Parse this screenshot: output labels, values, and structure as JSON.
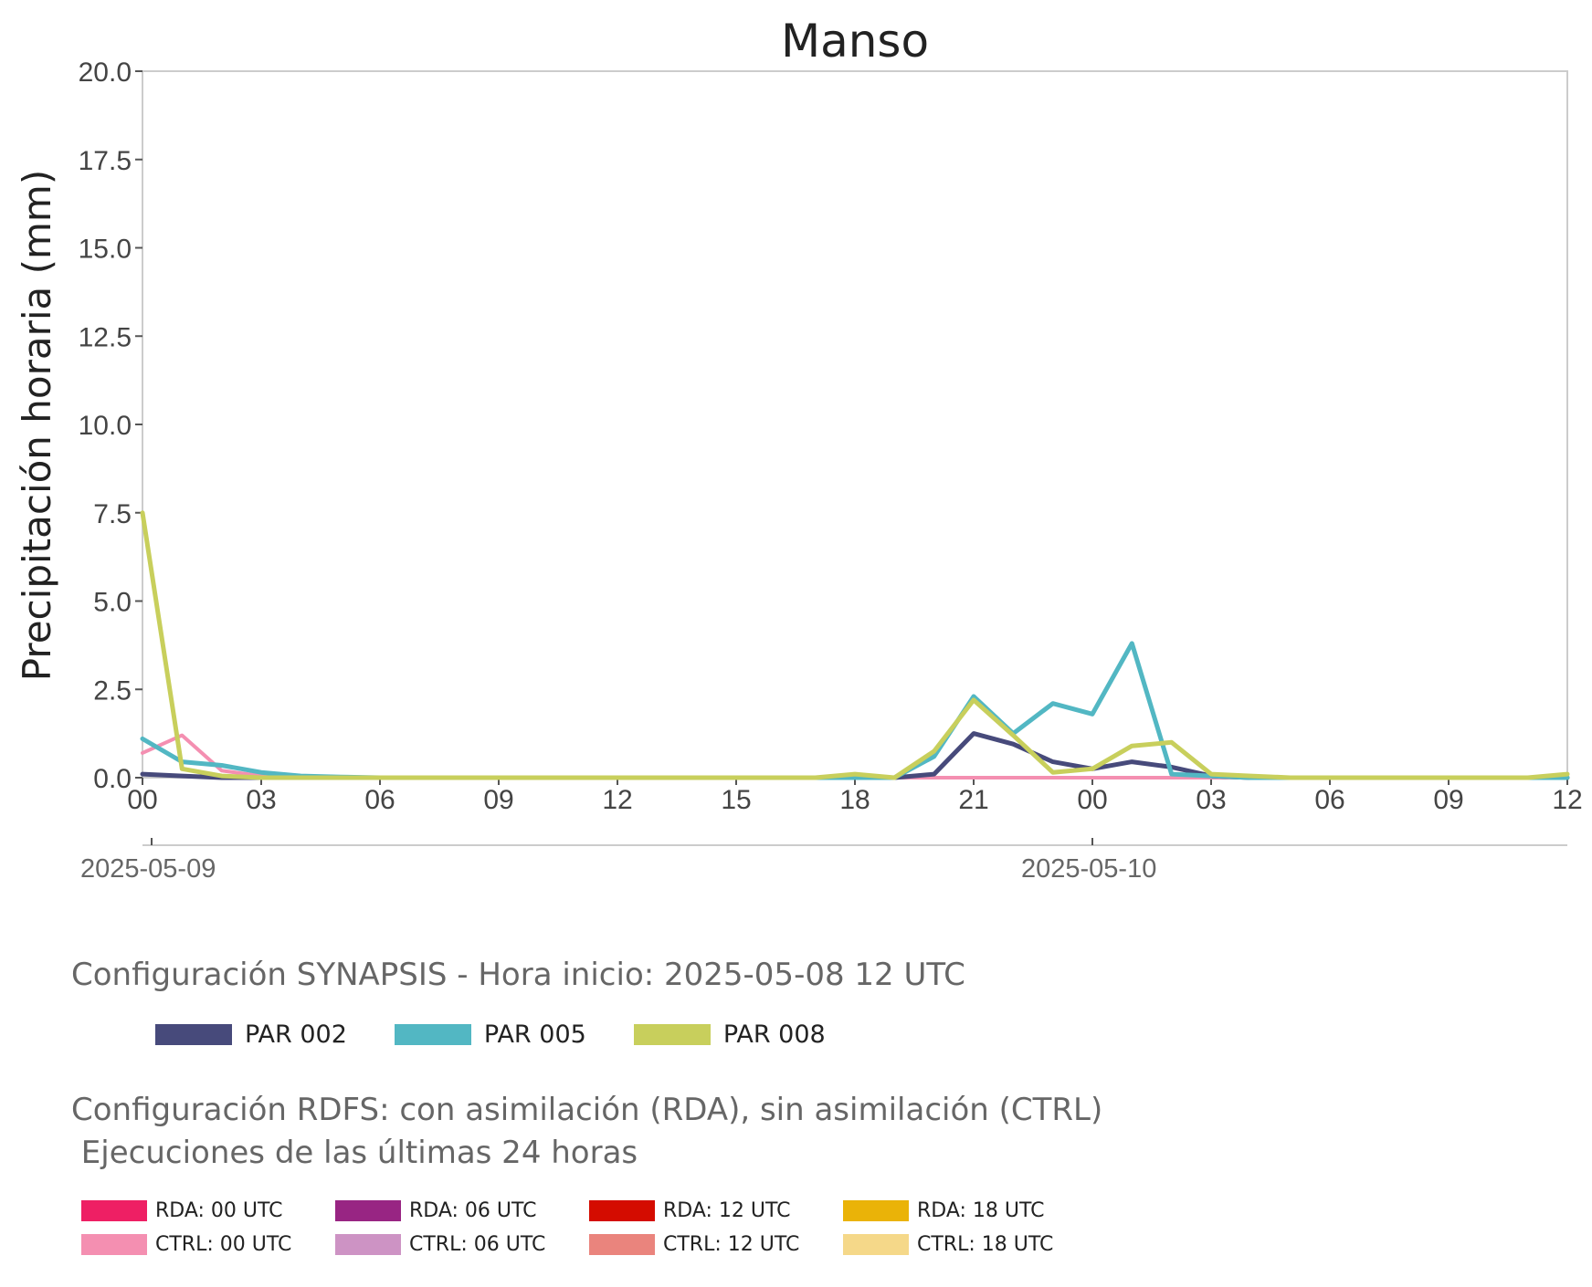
{
  "chart_data": {
    "type": "line",
    "title": "Manso",
    "ylabel": "Precipitación horaria (mm)",
    "xlabel": "",
    "ylim": [
      0,
      20
    ],
    "xlim": [
      "2025-05-09 00:00",
      "2025-05-10 12:00"
    ],
    "y_ticks": [
      "0.0",
      "2.5",
      "5.0",
      "7.5",
      "10.0",
      "12.5",
      "15.0",
      "17.5",
      "20.0"
    ],
    "x_ticks": [
      "00",
      "03",
      "06",
      "09",
      "12",
      "15",
      "18",
      "21",
      "00",
      "03",
      "06",
      "09",
      "12"
    ],
    "date_labels": [
      {
        "time": "2025-05-09 00:00",
        "label": "2025-05-09"
      },
      {
        "time": "2025-05-10 00:00",
        "label": "2025-05-10"
      }
    ],
    "grid": false,
    "series": [
      {
        "name": "PAR 002",
        "color": "#474a7b",
        "points": [
          [
            "2025-05-09 00:00",
            0.1
          ],
          [
            "2025-05-09 01:00",
            0.05
          ],
          [
            "2025-05-09 02:00",
            0.0
          ],
          [
            "2025-05-09 03:00",
            0.0
          ],
          [
            "2025-05-09 04:00",
            0.0
          ],
          [
            "2025-05-09 05:00",
            0.0
          ],
          [
            "2025-05-09 06:00",
            0.0
          ],
          [
            "2025-05-09 07:00",
            0.0
          ],
          [
            "2025-05-09 08:00",
            0.0
          ],
          [
            "2025-05-09 09:00",
            0.0
          ],
          [
            "2025-05-09 10:00",
            0.0
          ],
          [
            "2025-05-09 11:00",
            0.0
          ],
          [
            "2025-05-09 12:00",
            0.0
          ],
          [
            "2025-05-09 13:00",
            0.0
          ],
          [
            "2025-05-09 14:00",
            0.0
          ],
          [
            "2025-05-09 15:00",
            0.0
          ],
          [
            "2025-05-09 16:00",
            0.0
          ],
          [
            "2025-05-09 17:00",
            0.0
          ],
          [
            "2025-05-09 18:00",
            0.0
          ],
          [
            "2025-05-09 19:00",
            0.0
          ],
          [
            "2025-05-09 20:00",
            0.1
          ],
          [
            "2025-05-09 21:00",
            1.25
          ],
          [
            "2025-05-09 22:00",
            0.95
          ],
          [
            "2025-05-09 23:00",
            0.45
          ],
          [
            "2025-05-10 00:00",
            0.25
          ],
          [
            "2025-05-10 01:00",
            0.45
          ],
          [
            "2025-05-10 02:00",
            0.3
          ],
          [
            "2025-05-10 03:00",
            0.05
          ],
          [
            "2025-05-10 04:00",
            0.0
          ],
          [
            "2025-05-10 05:00",
            0.0
          ],
          [
            "2025-05-10 06:00",
            0.0
          ],
          [
            "2025-05-10 07:00",
            0.0
          ],
          [
            "2025-05-10 08:00",
            0.0
          ],
          [
            "2025-05-10 09:00",
            0.0
          ],
          [
            "2025-05-10 10:00",
            0.0
          ],
          [
            "2025-05-10 11:00",
            0.0
          ],
          [
            "2025-05-10 12:00",
            0.0
          ]
        ]
      },
      {
        "name": "PAR 005",
        "color": "#52b7c3",
        "points": [
          [
            "2025-05-09 00:00",
            1.1
          ],
          [
            "2025-05-09 01:00",
            0.45
          ],
          [
            "2025-05-09 02:00",
            0.35
          ],
          [
            "2025-05-09 03:00",
            0.15
          ],
          [
            "2025-05-09 04:00",
            0.05
          ],
          [
            "2025-05-09 05:00",
            0.02
          ],
          [
            "2025-05-09 06:00",
            0.0
          ],
          [
            "2025-05-09 07:00",
            0.0
          ],
          [
            "2025-05-09 08:00",
            0.0
          ],
          [
            "2025-05-09 09:00",
            0.0
          ],
          [
            "2025-05-09 10:00",
            0.0
          ],
          [
            "2025-05-09 11:00",
            0.0
          ],
          [
            "2025-05-09 12:00",
            0.0
          ],
          [
            "2025-05-09 13:00",
            0.0
          ],
          [
            "2025-05-09 14:00",
            0.0
          ],
          [
            "2025-05-09 15:00",
            0.0
          ],
          [
            "2025-05-09 16:00",
            0.0
          ],
          [
            "2025-05-09 17:00",
            0.0
          ],
          [
            "2025-05-09 18:00",
            0.0
          ],
          [
            "2025-05-09 19:00",
            0.0
          ],
          [
            "2025-05-09 20:00",
            0.6
          ],
          [
            "2025-05-09 21:00",
            2.3
          ],
          [
            "2025-05-09 22:00",
            1.25
          ],
          [
            "2025-05-09 23:00",
            2.1
          ],
          [
            "2025-05-10 00:00",
            1.8
          ],
          [
            "2025-05-10 01:00",
            3.8
          ],
          [
            "2025-05-10 02:00",
            0.1
          ],
          [
            "2025-05-10 03:00",
            0.05
          ],
          [
            "2025-05-10 04:00",
            0.0
          ],
          [
            "2025-05-10 05:00",
            0.0
          ],
          [
            "2025-05-10 06:00",
            0.0
          ],
          [
            "2025-05-10 07:00",
            0.0
          ],
          [
            "2025-05-10 08:00",
            0.0
          ],
          [
            "2025-05-10 09:00",
            0.0
          ],
          [
            "2025-05-10 10:00",
            0.0
          ],
          [
            "2025-05-10 11:00",
            0.0
          ],
          [
            "2025-05-10 12:00",
            0.0
          ]
        ]
      },
      {
        "name": "PAR 008",
        "color": "#c8cf5c",
        "points": [
          [
            "2025-05-09 00:00",
            7.5
          ],
          [
            "2025-05-09 01:00",
            0.25
          ],
          [
            "2025-05-09 02:00",
            0.05
          ],
          [
            "2025-05-09 03:00",
            0.0
          ],
          [
            "2025-05-09 04:00",
            0.0
          ],
          [
            "2025-05-09 05:00",
            0.0
          ],
          [
            "2025-05-09 06:00",
            0.0
          ],
          [
            "2025-05-09 07:00",
            0.0
          ],
          [
            "2025-05-09 08:00",
            0.0
          ],
          [
            "2025-05-09 09:00",
            0.0
          ],
          [
            "2025-05-09 10:00",
            0.0
          ],
          [
            "2025-05-09 11:00",
            0.0
          ],
          [
            "2025-05-09 12:00",
            0.0
          ],
          [
            "2025-05-09 13:00",
            0.0
          ],
          [
            "2025-05-09 14:00",
            0.0
          ],
          [
            "2025-05-09 15:00",
            0.0
          ],
          [
            "2025-05-09 16:00",
            0.0
          ],
          [
            "2025-05-09 17:00",
            0.0
          ],
          [
            "2025-05-09 18:00",
            0.1
          ],
          [
            "2025-05-09 19:00",
            0.0
          ],
          [
            "2025-05-09 20:00",
            0.75
          ],
          [
            "2025-05-09 21:00",
            2.2
          ],
          [
            "2025-05-09 22:00",
            1.2
          ],
          [
            "2025-05-09 23:00",
            0.15
          ],
          [
            "2025-05-10 00:00",
            0.25
          ],
          [
            "2025-05-10 01:00",
            0.9
          ],
          [
            "2025-05-10 02:00",
            1.0
          ],
          [
            "2025-05-10 03:00",
            0.1
          ],
          [
            "2025-05-10 04:00",
            0.05
          ],
          [
            "2025-05-10 05:00",
            0.0
          ],
          [
            "2025-05-10 06:00",
            0.0
          ],
          [
            "2025-05-10 07:00",
            0.0
          ],
          [
            "2025-05-10 08:00",
            0.0
          ],
          [
            "2025-05-10 09:00",
            0.0
          ],
          [
            "2025-05-10 10:00",
            0.0
          ],
          [
            "2025-05-10 11:00",
            0.0
          ],
          [
            "2025-05-10 12:00",
            0.1
          ]
        ]
      },
      {
        "name": "CTRL: 00 UTC",
        "color": "#f48fb1",
        "points": [
          [
            "2025-05-09 00:00",
            0.7
          ],
          [
            "2025-05-09 01:00",
            1.2
          ],
          [
            "2025-05-09 02:00",
            0.2
          ],
          [
            "2025-05-09 03:00",
            0.05
          ],
          [
            "2025-05-09 04:00",
            0.0
          ],
          [
            "2025-05-09 05:00",
            0.0
          ],
          [
            "2025-05-09 06:00",
            0.0
          ],
          [
            "2025-05-09 07:00",
            0.0
          ],
          [
            "2025-05-09 08:00",
            0.0
          ],
          [
            "2025-05-09 09:00",
            0.0
          ],
          [
            "2025-05-09 10:00",
            0.0
          ],
          [
            "2025-05-09 11:00",
            0.0
          ],
          [
            "2025-05-09 12:00",
            0.0
          ],
          [
            "2025-05-09 13:00",
            0.0
          ],
          [
            "2025-05-09 14:00",
            0.0
          ],
          [
            "2025-05-09 15:00",
            0.0
          ],
          [
            "2025-05-09 16:00",
            0.0
          ],
          [
            "2025-05-09 17:00",
            0.0
          ],
          [
            "2025-05-09 18:00",
            0.0
          ],
          [
            "2025-05-09 19:00",
            0.0
          ],
          [
            "2025-05-09 20:00",
            0.0
          ],
          [
            "2025-05-09 21:00",
            0.0
          ],
          [
            "2025-05-09 22:00",
            0.0
          ],
          [
            "2025-05-09 23:00",
            0.0
          ],
          [
            "2025-05-10 00:00",
            0.0
          ],
          [
            "2025-05-10 01:00",
            0.0
          ],
          [
            "2025-05-10 02:00",
            0.0
          ],
          [
            "2025-05-10 03:00",
            0.0
          ],
          [
            "2025-05-10 04:00",
            0.0
          ]
        ]
      }
    ]
  },
  "legend_synapsis": {
    "title": "Configuración SYNAPSIS - Hora inicio: 2025-05-08 12 UTC",
    "items": [
      {
        "label": "PAR 002",
        "color": "#474a7b"
      },
      {
        "label": "PAR 005",
        "color": "#52b7c3"
      },
      {
        "label": "PAR 008",
        "color": "#c8cf5c"
      }
    ]
  },
  "legend_rdfs": {
    "title": "Configuración RDFS: con asimilación (RDA), sin asimilación (CTRL)\n Ejecuciones de las últimas 24 horas",
    "items": [
      {
        "label": "RDA: 00 UTC",
        "color": "#ee1f64"
      },
      {
        "label": "RDA: 06 UTC",
        "color": "#982583"
      },
      {
        "label": "RDA: 12 UTC",
        "color": "#d40c00"
      },
      {
        "label": "RDA: 18 UTC",
        "color": "#eab308"
      },
      {
        "label": "CTRL: 00 UTC",
        "color": "#f48fb1"
      },
      {
        "label": "CTRL: 06 UTC",
        "color": "#cd93c4"
      },
      {
        "label": "CTRL: 12 UTC",
        "color": "#ea847d"
      },
      {
        "label": "CTRL: 18 UTC",
        "color": "#f5d889"
      }
    ]
  }
}
